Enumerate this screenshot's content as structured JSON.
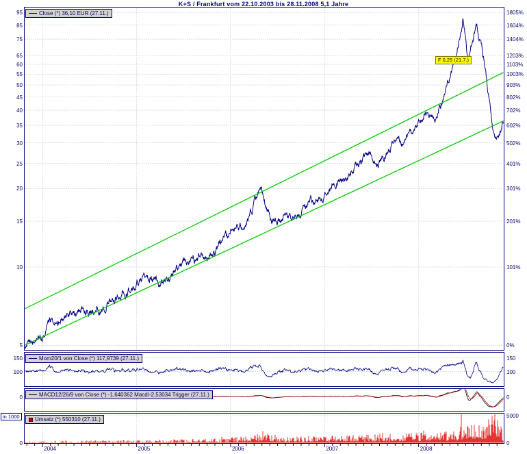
{
  "title": "K+S / Frankfurt vom 22.10.2003 bis 28.11.2008 5,1 Jahre",
  "colors": {
    "navy": "#000080",
    "price_line": "#000080",
    "trend_green": "#00cc00",
    "macd_line": "#000000",
    "trigger_line": "#cc0000",
    "volume_red": "#dd0000",
    "grid": "#b9c0d6",
    "legend_bg": "#d6d3ce",
    "flag_bg": "#ffff00",
    "axis_text": "#000066"
  },
  "x_axis": {
    "start_label": "22.10.2003",
    "end_label": "28.11.2008",
    "span_label": "5,1 Jahre",
    "years": [
      2004,
      2005,
      2006,
      2007,
      2008
    ]
  },
  "chart_data": [
    {
      "type": "line",
      "name": "price",
      "title": "K+S / Frankfurt",
      "legend": "Close (*) 36,10 EUR (27.11.)",
      "y_scale": "log",
      "ylim": [
        4.79,
        99.5
      ],
      "x_range": [
        2003.806,
        2008.908
      ],
      "grid": true,
      "legend_position": "top-left",
      "y_ticks": [
        {
          "price": 5,
          "percent": "0%"
        },
        {
          "price": 10,
          "percent": "101%"
        },
        {
          "price": 15,
          "percent": "201%"
        },
        {
          "price": 20,
          "percent": "301%"
        },
        {
          "price": 25,
          "percent": "401%"
        },
        {
          "price": 30,
          "percent": "502%"
        },
        {
          "price": 35,
          "percent": "602%"
        },
        {
          "price": 40,
          "percent": "702%"
        },
        {
          "price": 45,
          "percent": "802%"
        },
        {
          "price": 50,
          "percent": "903%"
        },
        {
          "price": 55,
          "percent": "1003%"
        },
        {
          "price": 60,
          "percent": "1103%"
        },
        {
          "price": 65,
          "percent": "1203%"
        },
        {
          "price": 75,
          "percent": "1404%"
        },
        {
          "price": 85,
          "percent": "1604%"
        },
        {
          "price": 95,
          "percent": "1805%"
        }
      ],
      "series": [
        {
          "name": "Close (EUR)",
          "color": "#000080",
          "x": [
            2003.81,
            2003.9,
            2004.0,
            2004.08,
            2004.17,
            2004.25,
            2004.33,
            2004.42,
            2004.5,
            2004.58,
            2004.67,
            2004.75,
            2004.83,
            2004.92,
            2005.0,
            2005.08,
            2005.17,
            2005.25,
            2005.33,
            2005.42,
            2005.5,
            2005.58,
            2005.67,
            2005.75,
            2005.83,
            2005.92,
            2006.0,
            2006.08,
            2006.17,
            2006.25,
            2006.33,
            2006.38,
            2006.46,
            2006.54,
            2006.58,
            2006.67,
            2006.75,
            2006.83,
            2006.92,
            2007.0,
            2007.08,
            2007.17,
            2007.25,
            2007.33,
            2007.42,
            2007.5,
            2007.58,
            2007.67,
            2007.75,
            2007.83,
            2007.92,
            2008.0,
            2008.08,
            2008.17,
            2008.25,
            2008.33,
            2008.42,
            2008.47,
            2008.52,
            2008.56,
            2008.62,
            2008.67,
            2008.71,
            2008.75,
            2008.79,
            2008.83,
            2008.87,
            2008.908
          ],
          "values": [
            5.0,
            5.15,
            5.7,
            6.3,
            6.1,
            6.6,
            6.35,
            6.9,
            6.65,
            7.0,
            7.35,
            7.6,
            8.0,
            8.3,
            8.6,
            9.0,
            8.7,
            8.5,
            9.0,
            9.6,
            10.3,
            10.6,
            11.2,
            10.8,
            11.6,
            12.3,
            13.2,
            14.0,
            14.8,
            16.8,
            18.9,
            16.0,
            15.3,
            15.6,
            15.9,
            15.0,
            16.2,
            17.2,
            18.0,
            19.0,
            20.0,
            21.0,
            22.5,
            24.5,
            26.0,
            27.5,
            25.5,
            28.0,
            30.5,
            29.0,
            32.0,
            36.0,
            39.5,
            38.0,
            44.0,
            52.0,
            72.0,
            94.0,
            64.0,
            72.0,
            83.0,
            71.0,
            58.0,
            44.0,
            31.0,
            29.0,
            33.5,
            36.1
          ]
        },
        {
          "name": "Trendkanal oben",
          "color": "#00cc00",
          "x": [
            2003.806,
            2008.908
          ],
          "values": [
            6.9,
            56.0
          ]
        },
        {
          "name": "Trendkanal unten",
          "color": "#00cc00",
          "x": [
            2003.806,
            2008.908
          ],
          "values": [
            5.0,
            36.5
          ]
        }
      ],
      "annotation": {
        "label": "F 0,25 (21.7.)",
        "t": 2008.55,
        "price": 88
      }
    },
    {
      "type": "line",
      "name": "momentum",
      "legend": "Mom20/1 von Close (*) 117,9739 (27.11.)",
      "period": "20/1",
      "derived_from": "close",
      "ylim": [
        45,
        170
      ],
      "ticks": [
        150,
        100
      ],
      "last_value": 117.9739,
      "color": "#000080"
    },
    {
      "type": "line",
      "name": "macd",
      "legend": "MACD12/26/9 von Close (*) -1,640362 Macd/-2,53034 Trigger (27.11.)",
      "params": "12/26/9",
      "derived_from": "close",
      "ylim": [
        -10.5,
        6
      ],
      "ticks": [
        0
      ],
      "last_macd": -1.640362,
      "last_trigger": -2.53034,
      "macd_color": "#000000",
      "trigger_color": "#cc0000"
    },
    {
      "type": "bar",
      "name": "volume",
      "legend": "Umsatz (*) 550310 (27.11.)",
      "unit": "in 1000",
      "ylim": [
        0,
        5400
      ],
      "ticks": [
        5000,
        0
      ],
      "last_value": 550310,
      "color": "#dd0000",
      "x": [
        2003.81,
        2004.3,
        2004.9,
        2005.5,
        2006.0,
        2006.35,
        2006.6,
        2007.0,
        2007.6,
        2007.9,
        2008.1,
        2008.35,
        2008.5,
        2008.65,
        2008.75,
        2008.82,
        2008.88,
        2008.908
      ],
      "values": [
        180,
        220,
        260,
        330,
        450,
        800,
        550,
        600,
        750,
        850,
        950,
        1100,
        1400,
        1500,
        2000,
        2400,
        1400,
        550
      ],
      "spikes": [
        {
          "t": 2008.45,
          "v": 5200
        },
        {
          "t": 2008.52,
          "v": 2900
        },
        {
          "t": 2006.34,
          "v": 2200
        },
        {
          "t": 2007.61,
          "v": 1900
        },
        {
          "t": 2008.05,
          "v": 2300
        },
        {
          "t": 2008.77,
          "v": 3400
        },
        {
          "t": 2008.8,
          "v": 4100
        },
        {
          "t": 2008.84,
          "v": 3000
        },
        {
          "t": 2007.3,
          "v": 1500
        },
        {
          "t": 2005.9,
          "v": 1200
        }
      ]
    }
  ]
}
